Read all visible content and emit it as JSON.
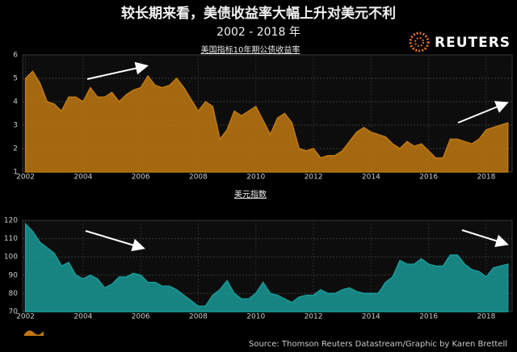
{
  "header": {
    "title": "较长期来看，美债收益率大幅上升对美元不利",
    "subtitle": "2002 - 2018 年"
  },
  "brand": "REUTERS",
  "source": "Source: Thomson Reuters Datastream/Graphic by Karen Brettell",
  "chart_data": [
    {
      "type": "area",
      "title": "美国指标10年期公债收益率",
      "color": "#c07a12",
      "grid": true,
      "x": [
        2002,
        2002.25,
        2002.5,
        2002.75,
        2003,
        2003.25,
        2003.5,
        2003.75,
        2004,
        2004.25,
        2004.5,
        2004.75,
        2005,
        2005.25,
        2005.5,
        2005.75,
        2006,
        2006.25,
        2006.5,
        2006.75,
        2007,
        2007.25,
        2007.5,
        2007.75,
        2008,
        2008.25,
        2008.5,
        2008.75,
        2009,
        2009.25,
        2009.5,
        2009.75,
        2010,
        2010.25,
        2010.5,
        2010.75,
        2011,
        2011.25,
        2011.5,
        2011.75,
        2012,
        2012.25,
        2012.5,
        2012.75,
        2013,
        2013.25,
        2013.5,
        2013.75,
        2014,
        2014.25,
        2014.5,
        2014.75,
        2015,
        2015.25,
        2015.5,
        2015.75,
        2016,
        2016.25,
        2016.5,
        2016.75,
        2017,
        2017.25,
        2017.5,
        2017.75,
        2018,
        2018.25,
        2018.5,
        2018.75
      ],
      "values": [
        5.0,
        5.3,
        4.8,
        4.0,
        3.9,
        3.6,
        4.2,
        4.2,
        4.0,
        4.6,
        4.2,
        4.2,
        4.4,
        4.0,
        4.3,
        4.5,
        4.6,
        5.1,
        4.7,
        4.6,
        4.7,
        5.0,
        4.6,
        4.1,
        3.6,
        4.0,
        3.8,
        2.4,
        2.8,
        3.6,
        3.4,
        3.6,
        3.8,
        3.2,
        2.6,
        3.3,
        3.5,
        3.1,
        2.0,
        1.9,
        2.0,
        1.6,
        1.7,
        1.7,
        1.9,
        2.3,
        2.7,
        2.9,
        2.7,
        2.6,
        2.5,
        2.2,
        2.0,
        2.3,
        2.1,
        2.2,
        1.9,
        1.6,
        1.6,
        2.4,
        2.4,
        2.3,
        2.2,
        2.4,
        2.8,
        2.9,
        3.0,
        3.1
      ],
      "xlim": [
        2001.9,
        2018.9
      ],
      "ylim": [
        1,
        6
      ],
      "xticks": [
        2002,
        2004,
        2006,
        2008,
        2010,
        2012,
        2014,
        2016,
        2018
      ],
      "yticks": [
        1,
        2,
        3,
        4,
        5,
        6
      ]
    },
    {
      "type": "area",
      "title": "美元指数",
      "color": "#1a9a98",
      "grid": true,
      "x": [
        2002,
        2002.25,
        2002.5,
        2002.75,
        2003,
        2003.25,
        2003.5,
        2003.75,
        2004,
        2004.25,
        2004.5,
        2004.75,
        2005,
        2005.25,
        2005.5,
        2005.75,
        2006,
        2006.25,
        2006.5,
        2006.75,
        2007,
        2007.25,
        2007.5,
        2007.75,
        2008,
        2008.25,
        2008.5,
        2008.75,
        2009,
        2009.25,
        2009.5,
        2009.75,
        2010,
        2010.25,
        2010.5,
        2010.75,
        2011,
        2011.25,
        2011.5,
        2011.75,
        2012,
        2012.25,
        2012.5,
        2012.75,
        2013,
        2013.25,
        2013.5,
        2013.75,
        2014,
        2014.25,
        2014.5,
        2014.75,
        2015,
        2015.25,
        2015.5,
        2015.75,
        2016,
        2016.25,
        2016.5,
        2016.75,
        2017,
        2017.25,
        2017.5,
        2017.75,
        2018,
        2018.25,
        2018.5,
        2018.75
      ],
      "values": [
        118,
        114,
        108,
        105,
        102,
        95,
        97,
        90,
        88,
        90,
        88,
        83,
        85,
        89,
        89,
        91,
        90,
        86,
        86,
        84,
        84,
        82,
        79,
        76,
        73,
        73,
        79,
        82,
        87,
        80,
        77,
        77,
        80,
        86,
        80,
        79,
        77,
        75,
        78,
        79,
        79,
        82,
        80,
        80,
        82,
        83,
        81,
        80,
        80,
        80,
        86,
        89,
        98,
        96,
        96,
        99,
        96,
        95,
        95,
        101,
        101,
        96,
        93,
        92,
        89,
        94,
        95,
        96
      ],
      "xlim": [
        2001.9,
        2018.9
      ],
      "ylim": [
        70,
        120
      ],
      "xticks": [
        2002,
        2004,
        2006,
        2008,
        2010,
        2012,
        2014,
        2016,
        2018
      ],
      "yticks": [
        70,
        80,
        90,
        100,
        110,
        120
      ]
    }
  ]
}
